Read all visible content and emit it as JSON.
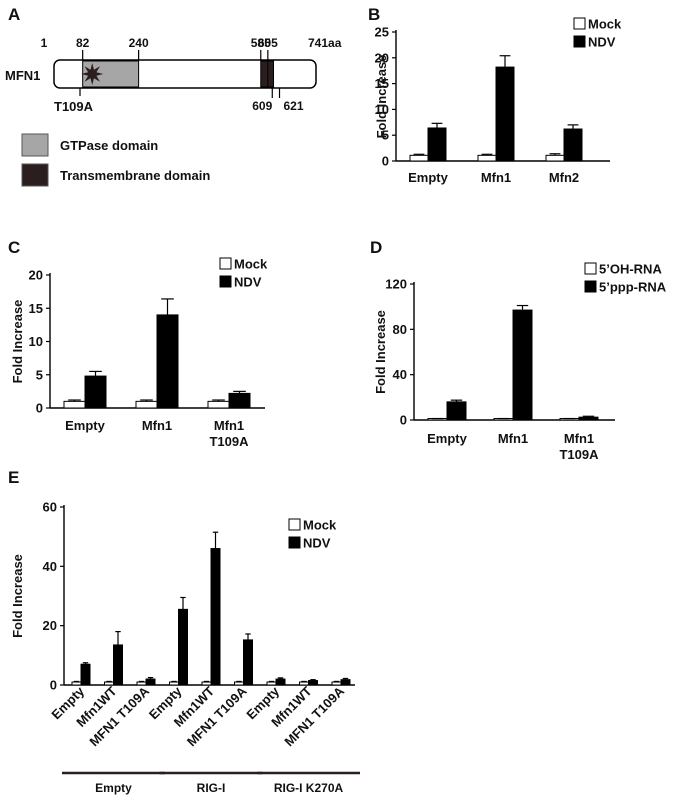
{
  "panel_a": {
    "letter": "A",
    "protein": "MFN1",
    "length_total": 741,
    "top_labels": [
      "1",
      "82",
      "240",
      "585",
      "605",
      "741aa"
    ],
    "bottom_labels": [
      "609",
      "621"
    ],
    "mutation_label": "T109A",
    "domains": [
      {
        "name": "GTPase domain",
        "start": 82,
        "end": 240,
        "color": "#a6a6a6"
      },
      {
        "name": "Transmembrane domain",
        "start": 585,
        "end": 609,
        "color": "#2a1e1e"
      },
      {
        "name": "Transmembrane domain",
        "start": 605,
        "end": 621,
        "color": "#2a1e1e"
      }
    ],
    "legend": [
      {
        "label": "GTPase domain",
        "color": "#a6a6a6"
      },
      {
        "label": "Transmembrane domain",
        "color": "#2a1e1e"
      }
    ]
  },
  "chart_data": [
    {
      "letter": "B",
      "type": "bar",
      "ylabel": "Fold Increase",
      "ylim": [
        0,
        25
      ],
      "yticks": [
        0,
        5,
        10,
        15,
        20,
        25
      ],
      "categories": [
        "Empty",
        "Mfn1",
        "Mfn2"
      ],
      "legend_position": "top-right",
      "series": [
        {
          "name": "Mock",
          "color": "#ffffff",
          "values": [
            1.1,
            1.1,
            1.1
          ],
          "errors": [
            0.2,
            0.2,
            0.3
          ]
        },
        {
          "name": "NDV",
          "color": "#000000",
          "values": [
            6.4,
            18.2,
            6.2
          ],
          "errors": [
            0.9,
            2.2,
            0.8
          ]
        }
      ]
    },
    {
      "letter": "C",
      "type": "bar",
      "ylabel": "Fold Increase",
      "ylim": [
        0,
        20
      ],
      "yticks": [
        0,
        5,
        10,
        15,
        20
      ],
      "categories": [
        "Empty",
        "Mfn1",
        "Mfn1\nT109A"
      ],
      "legend_position": "top-right",
      "series": [
        {
          "name": "Mock",
          "color": "#ffffff",
          "values": [
            1.0,
            1.0,
            1.0
          ],
          "errors": [
            0.2,
            0.2,
            0.2
          ]
        },
        {
          "name": "NDV",
          "color": "#000000",
          "values": [
            4.8,
            14.0,
            2.2
          ],
          "errors": [
            0.7,
            2.4,
            0.3
          ]
        }
      ]
    },
    {
      "letter": "D",
      "type": "bar",
      "ylabel": "Fold Increase",
      "ylim": [
        0,
        120
      ],
      "yticks": [
        0,
        40,
        80,
        120
      ],
      "categories": [
        "Empty",
        "Mfn1",
        "Mfn1\nT109A"
      ],
      "legend_position": "top-right",
      "series": [
        {
          "name": "5’OH-RNA",
          "color": "#ffffff",
          "values": [
            1.0,
            1.0,
            1.0
          ],
          "errors": [
            0.3,
            0.3,
            0.3
          ]
        },
        {
          "name": "5’ppp-RNA",
          "color": "#000000",
          "values": [
            16.0,
            97.0,
            2.5
          ],
          "errors": [
            1.5,
            4.0,
            0.8
          ]
        }
      ]
    },
    {
      "letter": "E",
      "type": "bar",
      "ylabel": "Fold Increase",
      "ylim": [
        0,
        60
      ],
      "yticks": [
        0,
        20,
        40,
        60
      ],
      "categories": [
        "Empty",
        "Mfn1WT",
        "MFN1 T109A",
        "Empty",
        "Mfn1WT",
        "MFN1 T109A",
        "Empty",
        "Mfn1WT",
        "MFN1 T109A"
      ],
      "groups": [
        {
          "label": "Empty",
          "start": 0,
          "end": 2
        },
        {
          "label": "RIG-I",
          "start": 3,
          "end": 5
        },
        {
          "label": "RIG-I K270A",
          "start": 6,
          "end": 8
        }
      ],
      "legend_position": "top-right",
      "series": [
        {
          "name": "Mock",
          "color": "#ffffff",
          "values": [
            1,
            1,
            1,
            1,
            1,
            1,
            1,
            1,
            1
          ],
          "errors": [
            0.2,
            0.2,
            0.2,
            0.2,
            0.2,
            0.2,
            0.2,
            0.2,
            0.2
          ]
        },
        {
          "name": "NDV",
          "color": "#000000",
          "values": [
            7.0,
            13.5,
            2.0,
            25.5,
            46.0,
            15.2,
            2.0,
            1.5,
            1.8
          ],
          "errors": [
            0.5,
            4.5,
            0.5,
            4.0,
            5.5,
            2.0,
            0.4,
            0.3,
            0.4
          ]
        }
      ]
    }
  ]
}
